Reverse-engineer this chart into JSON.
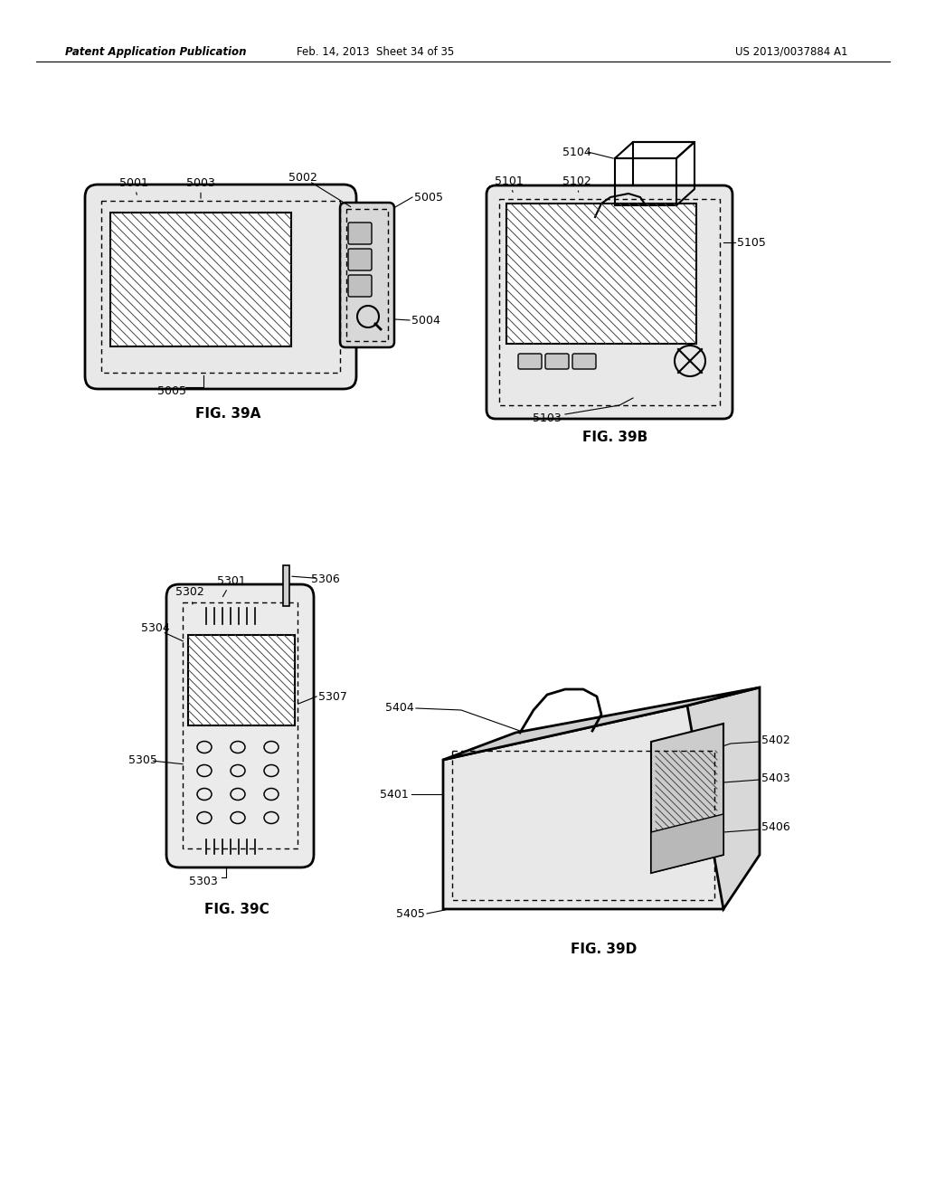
{
  "bg_color": "#ffffff",
  "header_left": "Patent Application Publication",
  "header_mid": "Feb. 14, 2013  Sheet 34 of 35",
  "header_right": "US 2013/0037884 A1",
  "line_color": "#000000",
  "text_color": "#000000"
}
